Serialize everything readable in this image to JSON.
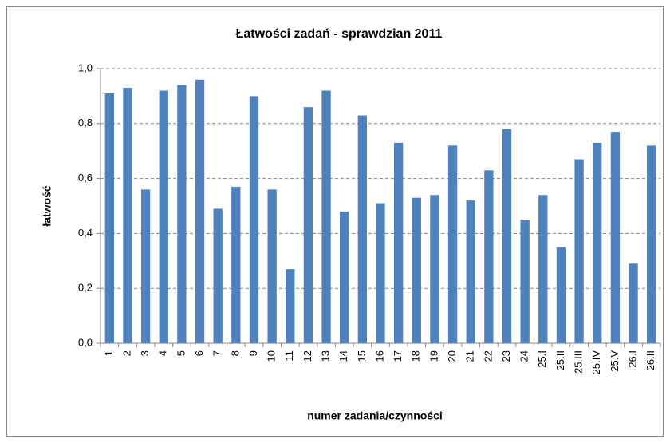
{
  "chart_data": {
    "type": "bar",
    "title": "Łatwości zadań - sprawdzian 2011",
    "x_label": "numer zadania/czynności",
    "y_label": "łatwość",
    "categories": [
      "1",
      "2",
      "3",
      "4",
      "5",
      "6",
      "7",
      "8",
      "9",
      "10",
      "11",
      "12",
      "13",
      "14",
      "15",
      "16",
      "17",
      "18",
      "19",
      "20",
      "21",
      "22",
      "23",
      "24",
      "25.I",
      "25.II",
      "25.III",
      "25.IV",
      "25.V",
      "26.I",
      "26.II"
    ],
    "values": [
      0.91,
      0.93,
      0.56,
      0.92,
      0.94,
      0.96,
      0.49,
      0.57,
      0.9,
      0.56,
      0.27,
      0.86,
      0.92,
      0.48,
      0.83,
      0.51,
      0.73,
      0.53,
      0.54,
      0.72,
      0.52,
      0.63,
      0.78,
      0.45,
      0.54,
      0.35,
      0.67,
      0.73,
      0.77,
      0.29,
      0.72
    ],
    "color": "#4f81bd",
    "ylim": [
      0,
      1
    ],
    "yticks": [
      {
        "value": 0,
        "label": "0,0"
      },
      {
        "value": 0.2,
        "label": "0,2"
      },
      {
        "value": 0.4,
        "label": "0,4"
      },
      {
        "value": 0.6,
        "label": "0,6"
      },
      {
        "value": 0.8,
        "label": "0,8"
      },
      {
        "value": 1,
        "label": "1,0"
      }
    ],
    "grid": true
  }
}
